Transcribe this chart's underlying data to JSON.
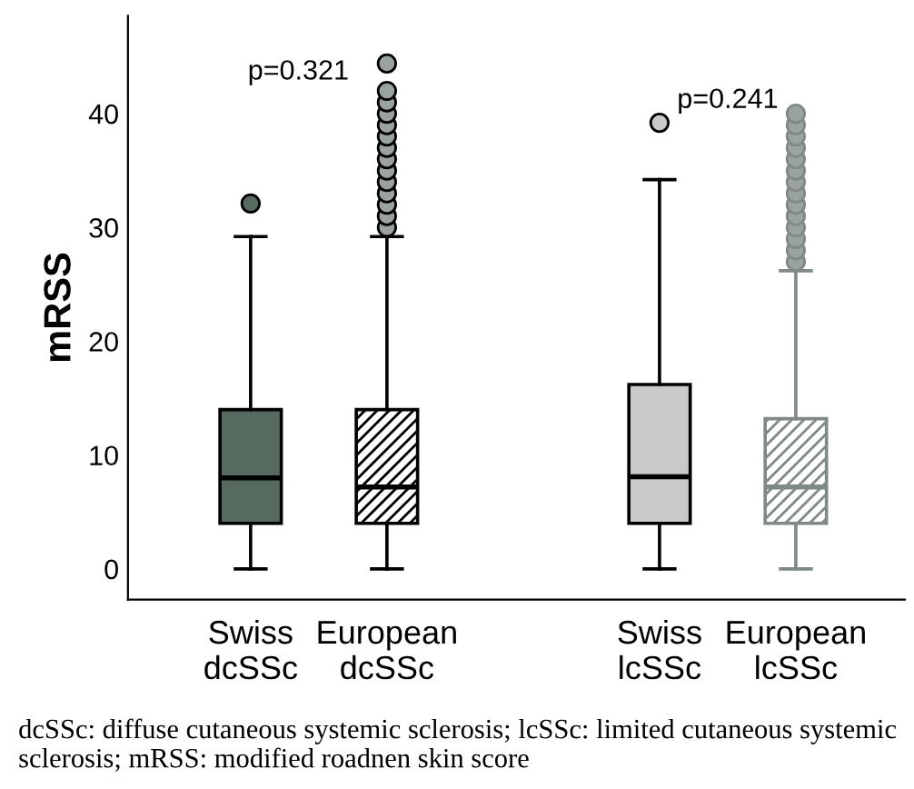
{
  "chart_data": {
    "type": "box",
    "ylabel": "mRSS",
    "categories": [
      "Swiss\ndcSSc",
      "European\ndcSSc",
      "Swiss\nlcSSc",
      "European\nlcSSc"
    ],
    "boxes": [
      {
        "low": 0,
        "q1": 4,
        "median": 8,
        "q3": 14,
        "high": 29.2,
        "outliers": [
          32.1
        ]
      },
      {
        "low": 0,
        "q1": 4,
        "median": 7.2,
        "q3": 14,
        "high": 29.2,
        "outliers": [
          30,
          31,
          32,
          33,
          34,
          35,
          36,
          37,
          38,
          39,
          40,
          41,
          42,
          44.4
        ]
      },
      {
        "low": 0,
        "q1": 4,
        "median": 8.1,
        "q3": 16.2,
        "high": 34.2,
        "outliers": [
          39.2
        ]
      },
      {
        "low": 0,
        "q1": 4,
        "median": 7.2,
        "q3": 13.2,
        "high": 26.2,
        "outliers": [
          27,
          28,
          29,
          30,
          31,
          32,
          33,
          34,
          35,
          36,
          37,
          38,
          39,
          40
        ]
      }
    ],
    "colors": [
      "#566a60",
      "#000000",
      "#c9c9c9",
      "#7f8a84"
    ],
    "ylim": [
      -2.7,
      48.6
    ],
    "yticks": [
      0,
      10,
      20,
      30,
      40
    ],
    "grid": false,
    "annotations": [
      "p=0.321",
      "p=0.241",
      "dcSSc: diffuse cutaneous systemic sclerosis; lcSSc: limited cutaneous systemic sclerosis; mRSS: modified roadnen skin score"
    ]
  }
}
